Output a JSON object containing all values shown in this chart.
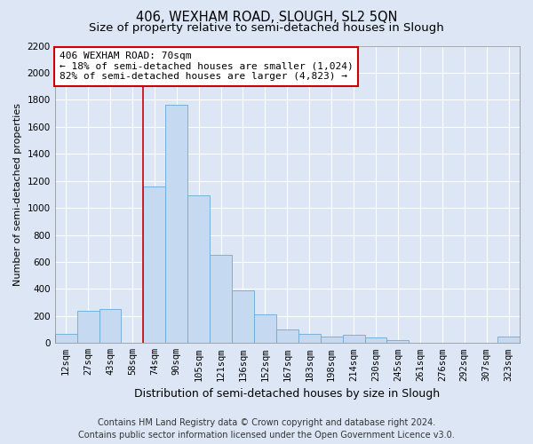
{
  "title": "406, WEXHAM ROAD, SLOUGH, SL2 5QN",
  "subtitle": "Size of property relative to semi-detached houses in Slough",
  "xlabel": "Distribution of semi-detached houses by size in Slough",
  "ylabel": "Number of semi-detached properties",
  "bar_color": "#c5daf0",
  "bar_edge_color": "#6baad8",
  "bg_color": "#dce6f5",
  "fig_bg_color": "#dce6f5",
  "grid_color": "#ffffff",
  "categories": [
    "12sqm",
    "27sqm",
    "43sqm",
    "58sqm",
    "74sqm",
    "90sqm",
    "105sqm",
    "121sqm",
    "136sqm",
    "152sqm",
    "167sqm",
    "183sqm",
    "198sqm",
    "214sqm",
    "230sqm",
    "245sqm",
    "261sqm",
    "276sqm",
    "292sqm",
    "307sqm",
    "323sqm"
  ],
  "values": [
    70,
    240,
    250,
    0,
    1160,
    1760,
    1090,
    650,
    390,
    210,
    100,
    70,
    50,
    60,
    40,
    20,
    0,
    0,
    0,
    0,
    50
  ],
  "ylim": [
    0,
    2200
  ],
  "yticks": [
    0,
    200,
    400,
    600,
    800,
    1000,
    1200,
    1400,
    1600,
    1800,
    2000,
    2200
  ],
  "prop_line_idx": 4,
  "annotation_title": "406 WEXHAM ROAD: 70sqm",
  "annotation_line1": "← 18% of semi-detached houses are smaller (1,024)",
  "annotation_line2": "82% of semi-detached houses are larger (4,823) →",
  "annotation_box_color": "#ffffff",
  "annotation_box_edge": "#cc0000",
  "property_line_color": "#cc0000",
  "footer_line1": "Contains HM Land Registry data © Crown copyright and database right 2024.",
  "footer_line2": "Contains public sector information licensed under the Open Government Licence v3.0.",
  "title_fontsize": 10.5,
  "subtitle_fontsize": 9.5,
  "xlabel_fontsize": 9,
  "ylabel_fontsize": 8,
  "tick_fontsize": 7.5,
  "annotation_fontsize": 8,
  "footer_fontsize": 7
}
